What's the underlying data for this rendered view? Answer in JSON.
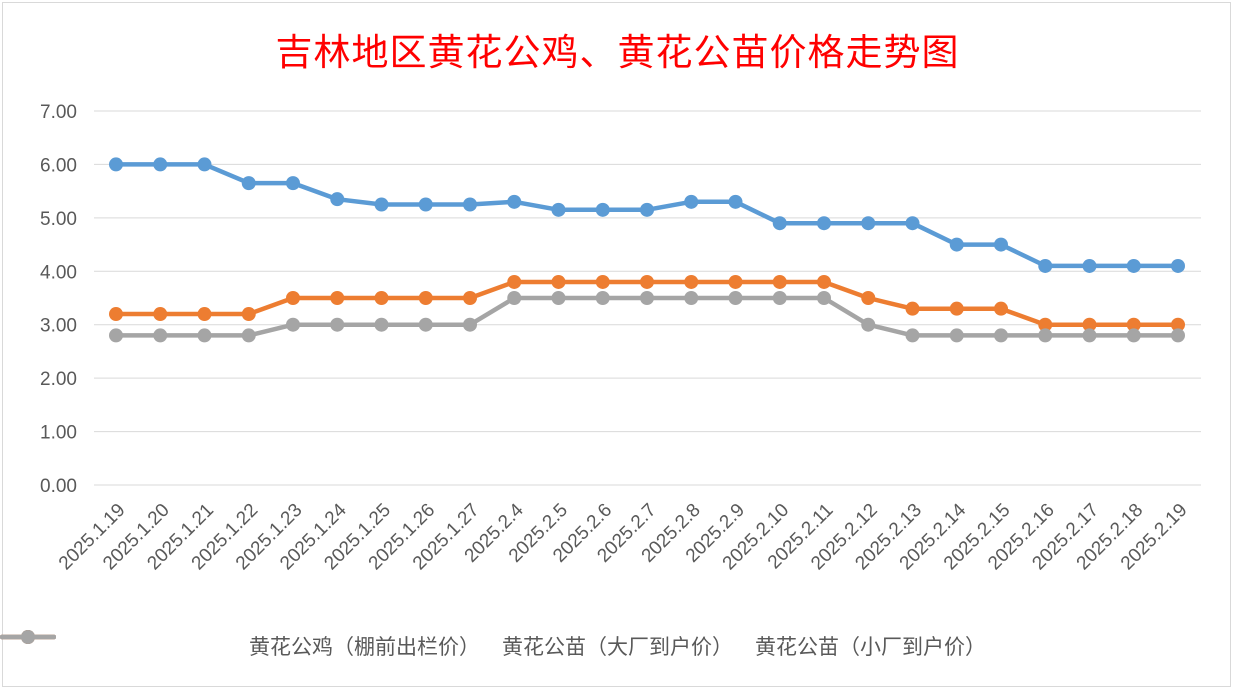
{
  "chart_data": {
    "type": "line",
    "title": "吉林地区黄花公鸡、黄花公苗价格走势图",
    "xlabel": "",
    "ylabel": "",
    "ylim": [
      0,
      7
    ],
    "yticks": [
      "0.00",
      "1.00",
      "2.00",
      "3.00",
      "4.00",
      "5.00",
      "6.00",
      "7.00"
    ],
    "grid": true,
    "legend_position": "bottom",
    "categories": [
      "2025.1.19",
      "2025.1.20",
      "2025.1.21",
      "2025.1.22",
      "2025.1.23",
      "2025.1.24",
      "2025.1.25",
      "2025.1.26",
      "2025.1.27",
      "2025.2.4",
      "2025.2.5",
      "2025.2.6",
      "2025.2.7",
      "2025.2.8",
      "2025.2.9",
      "2025.2.10",
      "2025.2.11",
      "2025.2.12",
      "2025.2.13",
      "2025.2.14",
      "2025.2.15",
      "2025.2.16",
      "2025.2.17",
      "2025.2.18",
      "2025.2.19"
    ],
    "series": [
      {
        "name": "黄花公鸡（棚前出栏价）",
        "color": "#5b9bd5",
        "values": [
          6.0,
          6.0,
          6.0,
          5.65,
          5.65,
          5.35,
          5.25,
          5.25,
          5.25,
          5.3,
          5.15,
          5.15,
          5.15,
          5.3,
          5.3,
          4.9,
          4.9,
          4.9,
          4.9,
          4.5,
          4.5,
          4.1,
          4.1,
          4.1,
          4.1
        ]
      },
      {
        "name": "黄花公苗（大厂到户价）",
        "color": "#ed7d31",
        "values": [
          3.2,
          3.2,
          3.2,
          3.2,
          3.5,
          3.5,
          3.5,
          3.5,
          3.5,
          3.8,
          3.8,
          3.8,
          3.8,
          3.8,
          3.8,
          3.8,
          3.8,
          3.5,
          3.3,
          3.3,
          3.3,
          3.0,
          3.0,
          3.0,
          3.0
        ]
      },
      {
        "name": "黄花公苗（小厂到户价）",
        "color": "#a5a5a5",
        "values": [
          2.8,
          2.8,
          2.8,
          2.8,
          3.0,
          3.0,
          3.0,
          3.0,
          3.0,
          3.5,
          3.5,
          3.5,
          3.5,
          3.5,
          3.5,
          3.5,
          3.5,
          3.0,
          2.8,
          2.8,
          2.8,
          2.8,
          2.8,
          2.8,
          2.8
        ]
      }
    ]
  }
}
